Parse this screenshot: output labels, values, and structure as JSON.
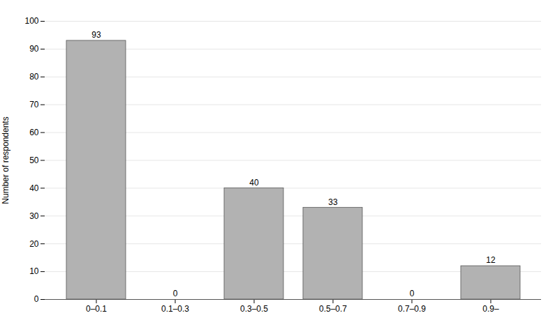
{
  "chart_data": {
    "type": "bar",
    "categories": [
      "0–0.1",
      "0.1–0.3",
      "0.3–0.5",
      "0.5–0.7",
      "0.7–0.9",
      "0.9–"
    ],
    "values": [
      93,
      0,
      40,
      33,
      0,
      12
    ],
    "color": "#b2b2b2",
    "ylabel": "Number of respondents",
    "ylim": [
      0,
      100
    ],
    "yticks": [
      0,
      10,
      20,
      30,
      40,
      50,
      60,
      70,
      80,
      90,
      100
    ],
    "grid": true,
    "data_labels": true
  }
}
